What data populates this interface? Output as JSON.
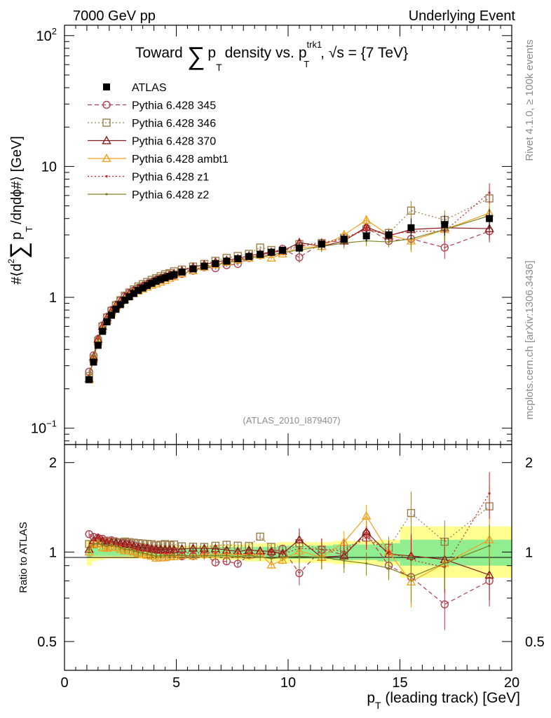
{
  "header": {
    "left": "7000 GeV pp",
    "right": "Underlying Event"
  },
  "side_texts": {
    "rivet": "Rivet 4.1.0, ≥ 100k events",
    "mcplots": "mcplots.cern.ch [arXiv:1306.3436]"
  },
  "chart_data": [
    {
      "panel": "main",
      "type": "line",
      "title": {
        "prefix": "Toward",
        "sum_symbol": "∑",
        "p": "p",
        "p_sub": "T",
        "middle": "density vs.",
        "p2": "p",
        "p2_sup": "trk1",
        "p2_sub": "T",
        "suffix": ", √s = {7 TeV}"
      },
      "ylabel": {
        "left": "#⟨d",
        "sup": "2",
        "sum": "∑",
        "p": "p",
        "sub": "T",
        "right": "/dηdϕ#⟩ [GeV]"
      },
      "yscale": "log",
      "ylim": [
        0.075,
        120
      ],
      "xlim": [
        0,
        20
      ],
      "analysis_label": "(ATLAS_2010_I879407)",
      "y_tick_labels": [
        {
          "value": 0.1,
          "base": "10",
          "exp": "−1"
        },
        {
          "value": 1,
          "base": "1",
          "exp": ""
        },
        {
          "value": 10,
          "base": "10",
          "exp": ""
        },
        {
          "value": 100,
          "base": "10",
          "exp": "2"
        }
      ],
      "x": [
        1.1,
        1.3,
        1.5,
        1.7,
        1.9,
        2.1,
        2.3,
        2.5,
        2.7,
        2.9,
        3.1,
        3.3,
        3.5,
        3.7,
        3.9,
        4.1,
        4.3,
        4.5,
        4.7,
        4.9,
        5.25,
        5.75,
        6.25,
        6.75,
        7.25,
        7.75,
        8.25,
        8.75,
        9.25,
        9.75,
        10.5,
        11.5,
        12.5,
        13.5,
        14.5,
        15.5,
        17.0,
        19.0
      ],
      "legend": [
        {
          "key": "atlas",
          "label": "ATLAS"
        },
        {
          "key": "p345",
          "label": "Pythia 6.428 345"
        },
        {
          "key": "p346",
          "label": "Pythia 6.428 346"
        },
        {
          "key": "p370",
          "label": "Pythia 6.428 370"
        },
        {
          "key": "ambt1",
          "label": "Pythia 6.428 ambt1"
        },
        {
          "key": "z1",
          "label": "Pythia 6.428 z1"
        },
        {
          "key": "z2",
          "label": "Pythia 6.428 z2"
        }
      ],
      "series": [
        {
          "key": "atlas",
          "name": "ATLAS",
          "color": "#000000",
          "marker": "square",
          "dash": "",
          "values": [
            0.235,
            0.32,
            0.43,
            0.55,
            0.65,
            0.73,
            0.81,
            0.88,
            0.95,
            1.01,
            1.07,
            1.13,
            1.18,
            1.23,
            1.28,
            1.33,
            1.37,
            1.41,
            1.45,
            1.49,
            1.56,
            1.65,
            1.73,
            1.81,
            1.89,
            1.97,
            2.05,
            2.13,
            2.21,
            2.29,
            2.38,
            2.55,
            2.78,
            2.95,
            3.0,
            3.4,
            3.6,
            4.0
          ]
        },
        {
          "key": "p345",
          "name": "Pythia 6.428 345",
          "color": "#b0404f",
          "marker": "circle",
          "dash": "6,4",
          "values": [
            0.27,
            0.36,
            0.48,
            0.61,
            0.71,
            0.8,
            0.88,
            0.95,
            1.02,
            1.08,
            1.13,
            1.18,
            1.22,
            1.27,
            1.31,
            1.35,
            1.39,
            1.42,
            1.45,
            1.47,
            1.51,
            1.6,
            1.7,
            1.67,
            1.76,
            1.8,
            2.0,
            2.1,
            2.2,
            2.35,
            2.02,
            2.6,
            2.72,
            3.4,
            2.7,
            2.8,
            2.4,
            3.2
          ]
        },
        {
          "key": "p346",
          "name": "Pythia 6.428 346",
          "color": "#9b7d4a",
          "marker": "square-open",
          "dash": "2,3",
          "values": [
            0.25,
            0.34,
            0.46,
            0.6,
            0.7,
            0.79,
            0.87,
            0.95,
            1.03,
            1.09,
            1.15,
            1.21,
            1.26,
            1.31,
            1.36,
            1.4,
            1.45,
            1.5,
            1.53,
            1.58,
            1.63,
            1.72,
            1.8,
            1.9,
            2.0,
            2.07,
            2.15,
            2.4,
            2.3,
            2.25,
            2.55,
            2.6,
            2.85,
            3.3,
            3.1,
            4.6,
            3.9,
            5.7
          ]
        },
        {
          "key": "p370",
          "name": "Pythia 6.428 370",
          "color": "#8b1a1a",
          "marker": "triangle",
          "dash": "",
          "values": [
            0.24,
            0.35,
            0.48,
            0.6,
            0.7,
            0.79,
            0.87,
            0.94,
            1.01,
            1.07,
            1.12,
            1.17,
            1.22,
            1.27,
            1.31,
            1.36,
            1.4,
            1.44,
            1.48,
            1.52,
            1.6,
            1.7,
            1.78,
            1.86,
            1.92,
            1.98,
            2.08,
            2.15,
            2.22,
            2.26,
            2.62,
            2.45,
            2.7,
            3.45,
            2.95,
            3.3,
            3.4,
            3.35
          ]
        },
        {
          "key": "ambt1",
          "name": "Pythia 6.428 ambt1",
          "color": "#f0a020",
          "marker": "triangle",
          "dash": "",
          "values": [
            0.235,
            0.34,
            0.46,
            0.57,
            0.67,
            0.76,
            0.84,
            0.9,
            0.96,
            1.02,
            1.07,
            1.12,
            1.16,
            1.2,
            1.24,
            1.27,
            1.31,
            1.35,
            1.4,
            1.44,
            1.52,
            1.6,
            1.7,
            1.78,
            1.86,
            1.93,
            2.0,
            2.1,
            2.0,
            2.15,
            2.4,
            2.45,
            3.0,
            3.9,
            3.0,
            2.7,
            3.3,
            4.4
          ]
        },
        {
          "key": "z1",
          "name": "Pythia 6.428 z1",
          "color": "#cc2020",
          "marker": "dot",
          "dash": "2,3",
          "values": [
            0.245,
            0.35,
            0.48,
            0.6,
            0.7,
            0.79,
            0.86,
            0.93,
            0.99,
            1.05,
            1.1,
            1.15,
            1.19,
            1.24,
            1.28,
            1.32,
            1.36,
            1.4,
            1.44,
            1.48,
            1.55,
            1.64,
            1.72,
            1.8,
            1.88,
            1.95,
            2.02,
            2.1,
            2.2,
            2.25,
            2.45,
            2.6,
            2.8,
            3.3,
            3.0,
            3.2,
            3.2,
            6.3
          ]
        },
        {
          "key": "z2",
          "name": "Pythia 6.428 z2",
          "color": "#808020",
          "marker": "dot",
          "dash": "",
          "values": [
            0.24,
            0.34,
            0.46,
            0.58,
            0.68,
            0.77,
            0.85,
            0.91,
            0.97,
            1.03,
            1.08,
            1.13,
            1.17,
            1.21,
            1.25,
            1.29,
            1.33,
            1.37,
            1.41,
            1.45,
            1.52,
            1.6,
            1.68,
            1.76,
            1.84,
            1.9,
            2.0,
            2.05,
            2.1,
            2.2,
            2.3,
            2.45,
            2.6,
            2.7,
            2.65,
            2.8,
            3.3,
            4.2
          ]
        }
      ]
    },
    {
      "panel": "ratio",
      "type": "line",
      "ylabel": "Ratio to ATLAS",
      "yscale": "log",
      "ylim": [
        0.4,
        2.3
      ],
      "xlim": [
        0,
        20
      ],
      "xlabel": {
        "p": "p",
        "sub": "T",
        "rest": " (leading track) [GeV]"
      },
      "x_ticks": [
        0,
        5,
        10,
        15,
        20
      ],
      "x_tick_labels": [
        "0",
        "5",
        "10",
        "15",
        "20"
      ],
      "y_ticks": [
        0.5,
        1,
        2
      ],
      "y_tick_labels": [
        "0.5",
        "1",
        "2"
      ],
      "band_stat": [
        0.96,
        0.97,
        0.97,
        0.97,
        0.97,
        0.97,
        0.97,
        0.97,
        0.97,
        0.97,
        0.97,
        0.97,
        0.97,
        0.97,
        0.97,
        0.97,
        0.97,
        0.97,
        0.97,
        0.97,
        0.97,
        0.97,
        0.97,
        0.96,
        0.96,
        0.96,
        0.96,
        0.96,
        0.96,
        0.95,
        0.95,
        0.95,
        0.94,
        0.94,
        0.93,
        0.9,
        0.9,
        0.9
      ],
      "band_stat_hi": [
        1.04,
        1.03,
        1.03,
        1.03,
        1.03,
        1.03,
        1.03,
        1.03,
        1.03,
        1.03,
        1.03,
        1.03,
        1.03,
        1.03,
        1.03,
        1.03,
        1.03,
        1.03,
        1.03,
        1.03,
        1.03,
        1.03,
        1.03,
        1.04,
        1.04,
        1.04,
        1.04,
        1.04,
        1.04,
        1.05,
        1.05,
        1.05,
        1.06,
        1.06,
        1.07,
        1.1,
        1.1,
        1.1
      ],
      "band_tot": [
        0.9,
        0.93,
        0.94,
        0.94,
        0.95,
        0.95,
        0.95,
        0.95,
        0.95,
        0.95,
        0.95,
        0.95,
        0.95,
        0.95,
        0.95,
        0.95,
        0.95,
        0.95,
        0.95,
        0.95,
        0.95,
        0.95,
        0.95,
        0.94,
        0.94,
        0.94,
        0.93,
        0.93,
        0.93,
        0.92,
        0.92,
        0.92,
        0.91,
        0.91,
        0.9,
        0.82,
        0.82,
        0.82
      ],
      "band_tot_hi": [
        1.1,
        1.07,
        1.06,
        1.06,
        1.05,
        1.05,
        1.05,
        1.05,
        1.05,
        1.05,
        1.05,
        1.05,
        1.05,
        1.05,
        1.05,
        1.05,
        1.05,
        1.05,
        1.05,
        1.05,
        1.05,
        1.05,
        1.05,
        1.06,
        1.06,
        1.06,
        1.07,
        1.07,
        1.07,
        1.08,
        1.08,
        1.08,
        1.09,
        1.09,
        1.1,
        1.22,
        1.22,
        1.22
      ]
    }
  ]
}
